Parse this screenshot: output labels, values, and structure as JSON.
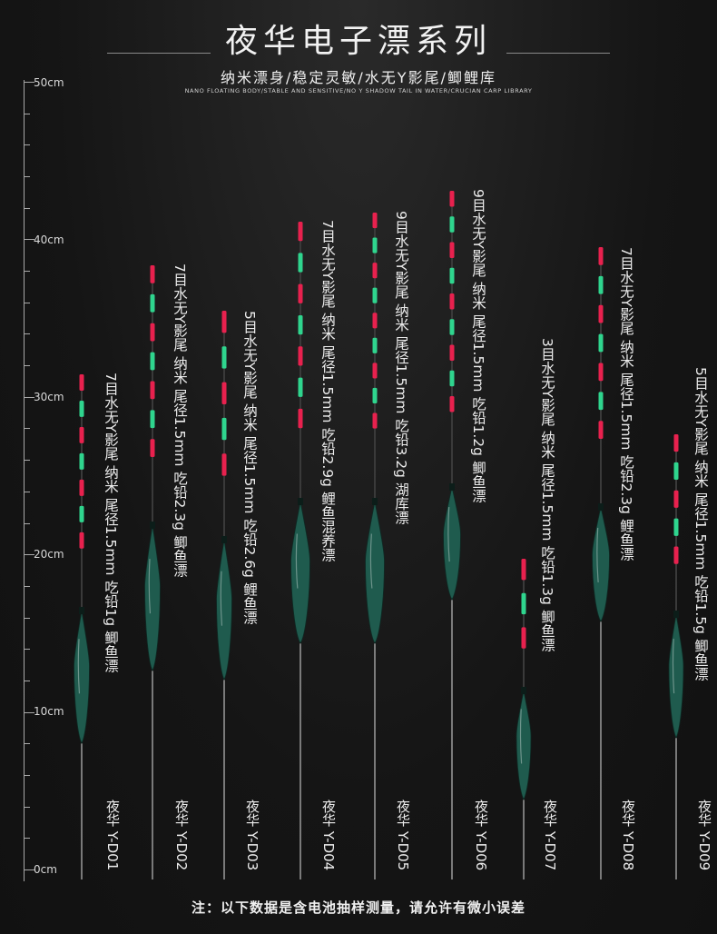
{
  "title": "夜华电子漂系列",
  "subtitle": "纳米漂身/稳定灵敏/水无Y影尾/鲫鲤库",
  "subtitle_en": "NANO FLOATING BODY/STABLE AND SENSITIVE/NO Y SHADOW TAIL IN WATER/CRUCIAN CARP LIBRARY",
  "ruler": {
    "labels": [
      "50cm",
      "40cm",
      "30cm",
      "20cm",
      "10cm",
      "0cm"
    ]
  },
  "colors": {
    "red": "#e8214e",
    "green": "#2fd58e",
    "body": "#1f5b4e"
  },
  "floats": [
    {
      "id": "d01",
      "spec": "7目水无Y影尾 纳米 尾径1.5mm 吃铅1g 鲫鱼漂",
      "model": "夜华 Y-D01",
      "segments": 7,
      "length_cm": 32
    },
    {
      "id": "d02",
      "spec": "7目水无Y影尾 纳米 尾径1.5mm 吃铅2.3g 鲫鱼漂",
      "model": "夜华 Y-D02",
      "segments": 7,
      "length_cm": 39
    },
    {
      "id": "d03",
      "spec": "5目水无Y影尾 纳米 尾径1.5mm 吃铅2.6g 鲤鱼漂",
      "model": "夜华 Y-D03",
      "segments": 5,
      "length_cm": 36
    },
    {
      "id": "d04",
      "spec": "7目水无Y影尾 纳米 尾径1.5mm 吃铅2.9g 鲤鱼混养漂",
      "model": "夜华 Y-D04",
      "segments": 7,
      "length_cm": 41
    },
    {
      "id": "d05",
      "spec": "9目水无Y影尾 纳米 尾径1.5mm 吃铅3.2g 湖库漂",
      "model": "夜华 Y-D05",
      "segments": 9,
      "length_cm": 42
    },
    {
      "id": "d06",
      "spec": "9目水无Y影尾 纳米 尾径1.5mm 吃铅1.2g 鲫鱼漂",
      "model": "夜华 Y-D06",
      "segments": 9,
      "length_cm": 44
    },
    {
      "id": "d07",
      "spec": "3目水无Y影尾 纳米 尾径1.5mm 吃铅1.3g 鲫鱼漂",
      "model": "夜华 Y-D07",
      "segments": 3,
      "length_cm": 20
    },
    {
      "id": "d08",
      "spec": "7目水无Y影尾 纳米 尾径1.5mm 吃铅2.3g 鲤鱼漂",
      "model": "夜华 Y-D08",
      "segments": 7,
      "length_cm": 40
    },
    {
      "id": "d09",
      "spec": "5目水无Y影尾 纳米 尾径1.5mm 吃铅1.5g 鲫鱼漂",
      "model": "夜华 Y-D09",
      "segments": 5,
      "length_cm": 28
    }
  ],
  "footnote": "注：以下数据是含电池抽样测量，请允许有微小误差"
}
